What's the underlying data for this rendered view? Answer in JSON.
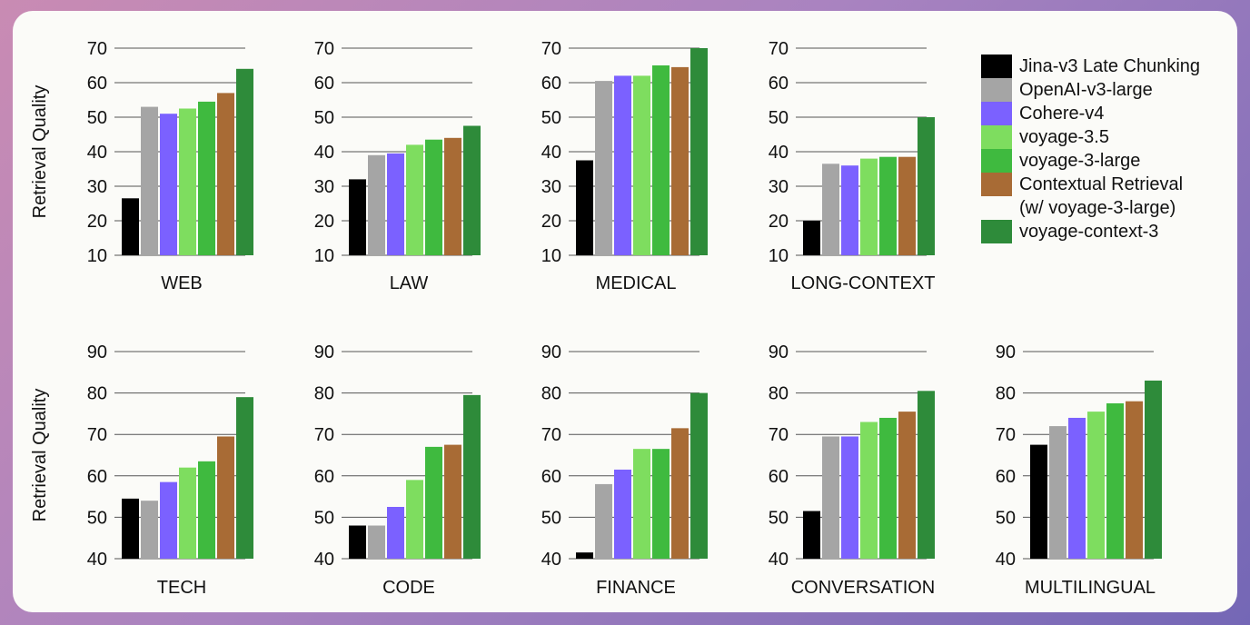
{
  "legend": {
    "items": [
      {
        "label": "Jina-v3 Late Chunking",
        "color": "#000000"
      },
      {
        "label": "OpenAI-v3-large",
        "color": "#a5a5a5"
      },
      {
        "label": "Cohere-v4",
        "color": "#7b61ff"
      },
      {
        "label": "voyage-3.5",
        "color": "#7edd5f"
      },
      {
        "label": "voyage-3-large",
        "color": "#3fba3f"
      },
      {
        "label": "Contextual Retrieval\n(w/ voyage-3-large)",
        "color": "#a86b35"
      },
      {
        "label": "voyage-context-3",
        "color": "#2e8b3a"
      }
    ]
  },
  "chart_data": [
    {
      "type": "bar",
      "title": "WEB",
      "ylabel": "Retrieval Quality",
      "ylim": [
        10,
        70
      ],
      "yticks": [
        10,
        20,
        30,
        40,
        50,
        60,
        70
      ],
      "categories": [
        "Jina-v3 Late Chunking",
        "OpenAI-v3-large",
        "Cohere-v4",
        "voyage-3.5",
        "voyage-3-large",
        "Contextual Retrieval (w/ voyage-3-large)",
        "voyage-context-3"
      ],
      "values": [
        26.5,
        53,
        51,
        52.5,
        54.5,
        57,
        64
      ]
    },
    {
      "type": "bar",
      "title": "LAW",
      "ylabel": "",
      "ylim": [
        10,
        70
      ],
      "yticks": [
        10,
        20,
        30,
        40,
        50,
        60,
        70
      ],
      "categories": [
        "Jina-v3 Late Chunking",
        "OpenAI-v3-large",
        "Cohere-v4",
        "voyage-3.5",
        "voyage-3-large",
        "Contextual Retrieval (w/ voyage-3-large)",
        "voyage-context-3"
      ],
      "values": [
        32,
        39,
        39.5,
        42,
        43.5,
        44,
        47.5
      ]
    },
    {
      "type": "bar",
      "title": "MEDICAL",
      "ylabel": "",
      "ylim": [
        10,
        70
      ],
      "yticks": [
        10,
        20,
        30,
        40,
        50,
        60,
        70
      ],
      "categories": [
        "Jina-v3 Late Chunking",
        "OpenAI-v3-large",
        "Cohere-v4",
        "voyage-3.5",
        "voyage-3-large",
        "Contextual Retrieval (w/ voyage-3-large)",
        "voyage-context-3"
      ],
      "values": [
        37.5,
        60.5,
        62,
        62,
        65,
        64.5,
        70
      ]
    },
    {
      "type": "bar",
      "title": "LONG-CONTEXT",
      "ylabel": "",
      "ylim": [
        10,
        70
      ],
      "yticks": [
        10,
        20,
        30,
        40,
        50,
        60,
        70
      ],
      "categories": [
        "Jina-v3 Late Chunking",
        "OpenAI-v3-large",
        "Cohere-v4",
        "voyage-3.5",
        "voyage-3-large",
        "Contextual Retrieval (w/ voyage-3-large)",
        "voyage-context-3"
      ],
      "values": [
        20,
        36.5,
        36,
        38,
        38.5,
        38.5,
        50
      ]
    },
    {
      "type": "bar",
      "title": "TECH",
      "ylabel": "Retrieval Quality",
      "ylim": [
        40,
        90
      ],
      "yticks": [
        40,
        50,
        60,
        70,
        80,
        90
      ],
      "categories": [
        "Jina-v3 Late Chunking",
        "OpenAI-v3-large",
        "Cohere-v4",
        "voyage-3.5",
        "voyage-3-large",
        "Contextual Retrieval (w/ voyage-3-large)",
        "voyage-context-3"
      ],
      "values": [
        54.5,
        54,
        58.5,
        62,
        63.5,
        69.5,
        79
      ]
    },
    {
      "type": "bar",
      "title": "CODE",
      "ylabel": "",
      "ylim": [
        40,
        90
      ],
      "yticks": [
        40,
        50,
        60,
        70,
        80,
        90
      ],
      "categories": [
        "Jina-v3 Late Chunking",
        "OpenAI-v3-large",
        "Cohere-v4",
        "voyage-3.5",
        "voyage-3-large",
        "Contextual Retrieval (w/ voyage-3-large)",
        "voyage-context-3"
      ],
      "values": [
        48,
        48,
        52.5,
        59,
        67,
        67.5,
        79.5
      ]
    },
    {
      "type": "bar",
      "title": "FINANCE",
      "ylabel": "",
      "ylim": [
        40,
        90
      ],
      "yticks": [
        40,
        50,
        60,
        70,
        80,
        90
      ],
      "categories": [
        "Jina-v3 Late Chunking",
        "OpenAI-v3-large",
        "Cohere-v4",
        "voyage-3.5",
        "voyage-3-large",
        "Contextual Retrieval (w/ voyage-3-large)",
        "voyage-context-3"
      ],
      "values": [
        41.5,
        58,
        61.5,
        66.5,
        66.5,
        71.5,
        80
      ]
    },
    {
      "type": "bar",
      "title": "CONVERSATION",
      "ylabel": "",
      "ylim": [
        40,
        90
      ],
      "yticks": [
        40,
        50,
        60,
        70,
        80,
        90
      ],
      "categories": [
        "Jina-v3 Late Chunking",
        "OpenAI-v3-large",
        "Cohere-v4",
        "voyage-3.5",
        "voyage-3-large",
        "Contextual Retrieval (w/ voyage-3-large)",
        "voyage-context-3"
      ],
      "values": [
        51.5,
        69.5,
        69.5,
        73,
        74,
        75.5,
        80.5
      ]
    },
    {
      "type": "bar",
      "title": "MULTILINGUAL",
      "ylabel": "",
      "ylim": [
        40,
        90
      ],
      "yticks": [
        40,
        50,
        60,
        70,
        80,
        90
      ],
      "categories": [
        "Jina-v3 Late Chunking",
        "OpenAI-v3-large",
        "Cohere-v4",
        "voyage-3.5",
        "voyage-3-large",
        "Contextual Retrieval (w/ voyage-3-large)",
        "voyage-context-3"
      ],
      "values": [
        67.5,
        72,
        74,
        75.5,
        77.5,
        78,
        83
      ]
    }
  ]
}
